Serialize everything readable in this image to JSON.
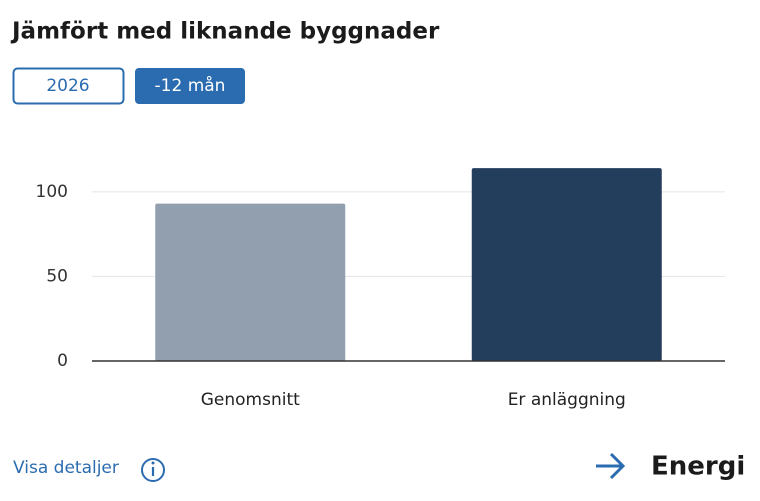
{
  "title": "Jämfört med liknande byggnader",
  "tabs": [
    "2026",
    "-12 mån"
  ],
  "chart_data": {
    "type": "bar",
    "categories": [
      "Genomsnitt",
      "Er anläggning"
    ],
    "values": [
      93,
      114
    ],
    "colors": [
      "#929fae",
      "#233d5c"
    ],
    "ylim": [
      0,
      120
    ],
    "yticks": [
      0,
      50,
      100
    ],
    "grid": true
  },
  "footer": {
    "link": "Visa detaljer",
    "nav": "Energi"
  }
}
